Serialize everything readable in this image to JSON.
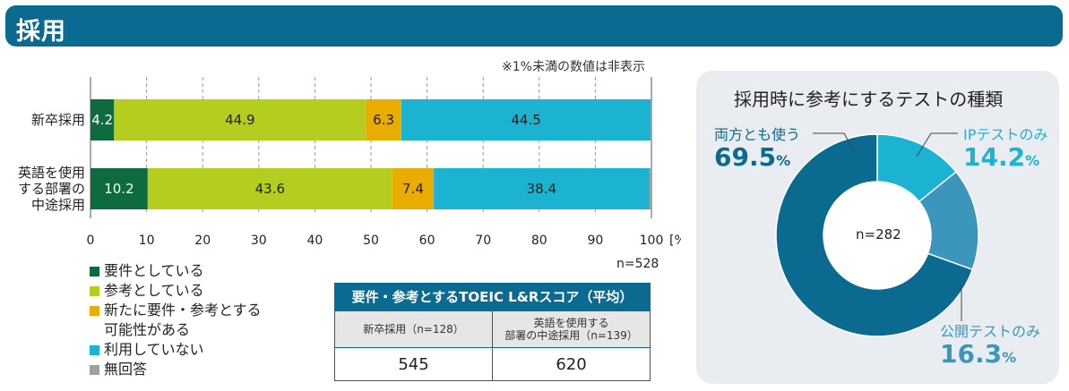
{
  "header": {
    "title": "採用"
  },
  "note": "※1%未満の数値は非表示",
  "sample_note": "n=528",
  "chart_data": [
    {
      "type": "bar",
      "orientation": "horizontal",
      "stacked": true,
      "categories": [
        "新卒採用",
        "英語を使用\nする部署の\n中途採用"
      ],
      "series": [
        {
          "name": "要件としている",
          "color": "#0e6b3d",
          "values": [
            4.2,
            10.2
          ]
        },
        {
          "name": "参考としている",
          "color": "#b5cd1e",
          "values": [
            44.9,
            43.6
          ]
        },
        {
          "name": "新たに要件・参考とする\n可能性がある",
          "color": "#e8ad00",
          "values": [
            6.3,
            7.4
          ]
        },
        {
          "name": "利用していない",
          "color": "#1cb3d2",
          "values": [
            44.5,
            38.4
          ]
        },
        {
          "name": "無回答",
          "color": "#a0a0a0",
          "values": [
            0.1,
            0.4
          ]
        }
      ],
      "xlim": [
        0,
        100
      ],
      "xticks": [
        "0",
        "10",
        "20",
        "30",
        "40",
        "50",
        "60",
        "70",
        "80",
        "90",
        "100"
      ],
      "xunit": "[%]",
      "grid": true,
      "legend_position": "bottom-left"
    },
    {
      "type": "pie",
      "donut": true,
      "title": "採用時に参考にするテストの種類",
      "center_label": "n=282",
      "slices": [
        {
          "name": "IPテストのみ",
          "value": 14.2,
          "display": "14.2",
          "color": "#1cb3d2"
        },
        {
          "name": "公開テストのみ",
          "value": 16.3,
          "display": "16.3",
          "color": "#3c96bc"
        },
        {
          "name": "両方とも使う",
          "value": 69.5,
          "display": "69.5",
          "color": "#0a6a8f"
        }
      ],
      "unit": "%"
    }
  ],
  "score_table": {
    "title": "要件・参考とするTOEIC L&Rスコア（平均）",
    "headers": [
      "新卒採用（n=128）",
      "英語を使用する\n部署の中途採用（n=139）"
    ],
    "values": [
      "545",
      "620"
    ]
  }
}
